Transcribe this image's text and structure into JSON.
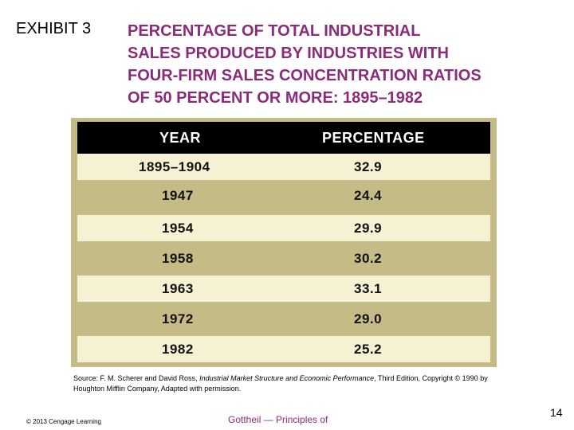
{
  "exhibit": {
    "label": "EXHIBIT 3",
    "title_lines": [
      "PERCENTAGE OF TOTAL INDUSTRIAL",
      "SALES PRODUCED BY INDUSTRIES WITH",
      "FOUR-FIRM SALES CONCENTRATION RATIOS",
      "OF 50 PERCENT OR MORE: 1895–1982"
    ]
  },
  "table": {
    "headers": [
      "YEAR",
      "PERCENTAGE"
    ],
    "rows": [
      {
        "year": "1895–1904",
        "percentage": "32.9"
      },
      {
        "year": "1947",
        "percentage": "24.4"
      },
      {
        "year": "1954",
        "percentage": "29.9"
      },
      {
        "year": "1958",
        "percentage": "30.2"
      },
      {
        "year": "1963",
        "percentage": "33.1"
      },
      {
        "year": "1972",
        "percentage": "29.0"
      },
      {
        "year": "1982",
        "percentage": "25.2"
      }
    ]
  },
  "source": {
    "prefix": "Source: F. M. Scherer and David Ross, ",
    "title": "Industrial Market Structure and Economic Performance",
    "suffix": ", Third Edition, Copyright © 1990 by Houghton Mifflin Company, Adapted with permission."
  },
  "footer": {
    "copyright": "© 2013 Cengage Learning",
    "book": "Gottheil — Principles of",
    "page_number": "14"
  },
  "colors": {
    "title": "#8b2c7a",
    "table_header_bg": "#000000",
    "row_light": "#f7f1d3",
    "row_dark": "#c4bb86"
  }
}
